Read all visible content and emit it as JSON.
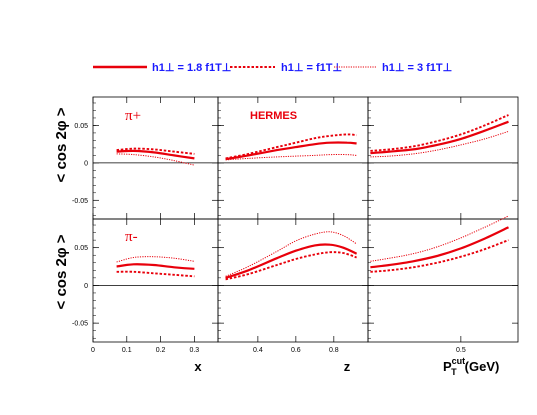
{
  "colors": {
    "curve": "#e8000b",
    "legend_text": "#1a1aff",
    "axes": "#000000"
  },
  "legend": {
    "placement": "top",
    "entries": [
      {
        "style": "solid",
        "label": "h1⊥ = 1.8 f1T⊥"
      },
      {
        "style": "dashed",
        "label": "h1⊥ = f1T⊥"
      },
      {
        "style": "dotted",
        "label": "h1⊥ = 3 f1T⊥"
      }
    ]
  },
  "annotations": {
    "experiment": "HERMES",
    "pi_plus": "π+",
    "pi_minus": "π-"
  },
  "y_axis": {
    "label": "< cos 2φ >",
    "ylim": [
      -0.075,
      0.088
    ],
    "ticks": [
      "0.05",
      "0",
      "-0.05"
    ],
    "tick_values": [
      0.05,
      0,
      -0.05
    ]
  },
  "x_axes": [
    {
      "label": "x",
      "xlim": [
        0,
        0.37
      ],
      "ticks": [
        "0",
        "0.1",
        "0.2",
        "0.3"
      ],
      "tick_values": [
        0,
        0.1,
        0.2,
        0.3
      ]
    },
    {
      "label": "z",
      "xlim": [
        0.19,
        0.98
      ],
      "ticks": [
        "0.4",
        "0.6",
        "0.8"
      ],
      "tick_values": [
        0.4,
        0.6,
        0.8
      ]
    },
    {
      "label": "P_T^cut (GeV)",
      "xlim": [
        0.11,
        0.74
      ],
      "ticks": [
        "0.5"
      ],
      "tick_values": [
        0.5
      ]
    }
  ],
  "chart_data": [
    {
      "type": "line",
      "hadron": "π+",
      "xlabel": "x",
      "x": [
        0.07,
        0.12,
        0.18,
        0.24,
        0.3
      ],
      "series": [
        {
          "name": "h1⊥ = 1.8 f1T⊥",
          "values": [
            0.015,
            0.016,
            0.014,
            0.01,
            0.006
          ]
        },
        {
          "name": "h1⊥ = f1T⊥",
          "values": [
            0.017,
            0.019,
            0.018,
            0.015,
            0.012
          ]
        },
        {
          "name": "h1⊥ = 3 f1T⊥",
          "values": [
            0.012,
            0.011,
            0.008,
            0.003,
            -0.003
          ]
        }
      ]
    },
    {
      "type": "line",
      "hadron": "π+",
      "xlabel": "z",
      "x": [
        0.23,
        0.35,
        0.5,
        0.6,
        0.7,
        0.78,
        0.87,
        0.92
      ],
      "series": [
        {
          "name": "h1⊥ = 1.8 f1T⊥",
          "values": [
            0.005,
            0.01,
            0.017,
            0.021,
            0.025,
            0.027,
            0.027,
            0.026
          ]
        },
        {
          "name": "h1⊥ = f1T⊥",
          "values": [
            0.006,
            0.012,
            0.021,
            0.027,
            0.033,
            0.036,
            0.038,
            0.037
          ]
        },
        {
          "name": "h1⊥ = 3 f1T⊥",
          "values": [
            0.004,
            0.006,
            0.008,
            0.009,
            0.01,
            0.011,
            0.011,
            0.01
          ]
        }
      ]
    },
    {
      "type": "line",
      "hadron": "π+",
      "xlabel": "P_T^cut (GeV)",
      "x": [
        0.12,
        0.2,
        0.3,
        0.4,
        0.5,
        0.6,
        0.7
      ],
      "series": [
        {
          "name": "h1⊥ = 1.8 f1T⊥",
          "values": [
            0.013,
            0.015,
            0.018,
            0.024,
            0.032,
            0.043,
            0.055
          ]
        },
        {
          "name": "h1⊥ = f1T⊥",
          "values": [
            0.016,
            0.018,
            0.022,
            0.029,
            0.038,
            0.05,
            0.064
          ]
        },
        {
          "name": "h1⊥ = 3 f1T⊥",
          "values": [
            0.008,
            0.009,
            0.012,
            0.017,
            0.024,
            0.032,
            0.042
          ]
        }
      ]
    },
    {
      "type": "line",
      "hadron": "π-",
      "xlabel": "x",
      "x": [
        0.07,
        0.12,
        0.18,
        0.24,
        0.3
      ],
      "series": [
        {
          "name": "h1⊥ = 1.8 f1T⊥",
          "values": [
            0.025,
            0.028,
            0.027,
            0.024,
            0.022
          ]
        },
        {
          "name": "h1⊥ = f1T⊥",
          "values": [
            0.018,
            0.018,
            0.016,
            0.014,
            0.012
          ]
        },
        {
          "name": "h1⊥ = 3 f1T⊥",
          "values": [
            0.031,
            0.037,
            0.038,
            0.036,
            0.032
          ]
        }
      ]
    },
    {
      "type": "line",
      "hadron": "π-",
      "xlabel": "z",
      "x": [
        0.23,
        0.35,
        0.5,
        0.6,
        0.7,
        0.78,
        0.85,
        0.92
      ],
      "series": [
        {
          "name": "h1⊥ = 1.8 f1T⊥",
          "values": [
            0.01,
            0.02,
            0.036,
            0.046,
            0.053,
            0.054,
            0.05,
            0.042
          ]
        },
        {
          "name": "h1⊥ = f1T⊥",
          "values": [
            0.008,
            0.015,
            0.027,
            0.035,
            0.041,
            0.044,
            0.043,
            0.037
          ]
        },
        {
          "name": "h1⊥ = 3 f1T⊥",
          "values": [
            0.012,
            0.025,
            0.045,
            0.059,
            0.068,
            0.071,
            0.066,
            0.055
          ]
        }
      ]
    },
    {
      "type": "line",
      "hadron": "π-",
      "xlabel": "P_T^cut (GeV)",
      "x": [
        0.12,
        0.2,
        0.3,
        0.4,
        0.5,
        0.6,
        0.7
      ],
      "series": [
        {
          "name": "h1⊥ = 1.8 f1T⊥",
          "values": [
            0.024,
            0.027,
            0.032,
            0.039,
            0.049,
            0.062,
            0.077
          ]
        },
        {
          "name": "h1⊥ = f1T⊥",
          "values": [
            0.018,
            0.02,
            0.024,
            0.03,
            0.038,
            0.048,
            0.06
          ]
        },
        {
          "name": "h1⊥ = 3 f1T⊥",
          "values": [
            0.032,
            0.036,
            0.042,
            0.051,
            0.063,
            0.077,
            0.092
          ]
        }
      ]
    }
  ]
}
